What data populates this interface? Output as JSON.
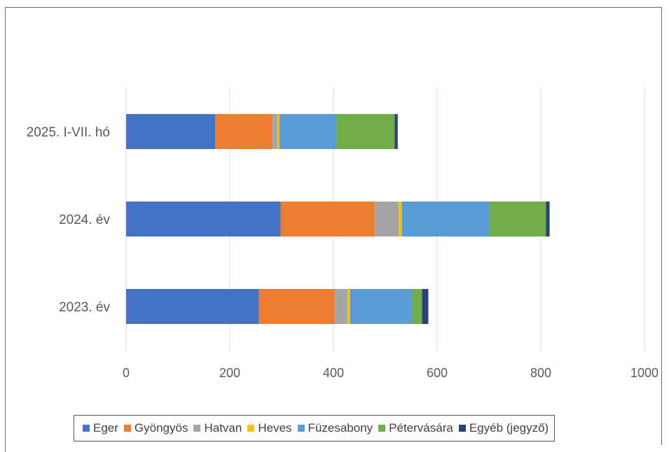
{
  "chart_data": {
    "type": "bar",
    "orientation": "horizontal",
    "stacked": true,
    "categories": [
      "2025. I-VII. hó",
      "2024. év",
      "2023. év"
    ],
    "series": [
      {
        "name": "Eger",
        "color": "#4472C4",
        "values": [
          172,
          298,
          256
        ]
      },
      {
        "name": "Gyöngyös",
        "color": "#ED7D31",
        "values": [
          110,
          182,
          146
        ]
      },
      {
        "name": "Hatvan",
        "color": "#A5A5A5",
        "values": [
          10,
          46,
          25
        ]
      },
      {
        "name": "Heves",
        "color": "#FFC000",
        "values": [
          4,
          6,
          5
        ]
      },
      {
        "name": "Füzesabony",
        "color": "#5B9BD5",
        "values": [
          110,
          168,
          120
        ]
      },
      {
        "name": "Pétervására",
        "color": "#70AD47",
        "values": [
          112,
          110,
          19
        ]
      },
      {
        "name": "Egyéb (jegyző)",
        "color": "#264478",
        "values": [
          6,
          7,
          12
        ]
      }
    ],
    "xlim": [
      0,
      1000
    ],
    "xticks": [
      "0",
      "200",
      "400",
      "600",
      "800",
      "1000"
    ],
    "grid": true,
    "legend_position": "bottom"
  }
}
